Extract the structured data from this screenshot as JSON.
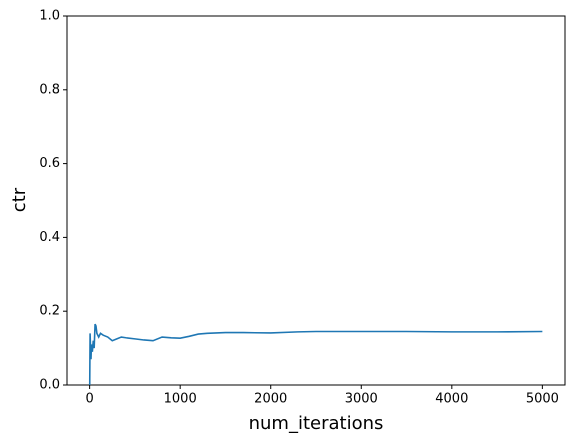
{
  "chart_data": {
    "type": "line",
    "xlabel": "num_iterations",
    "ylabel": "ctr",
    "x": [
      1,
      5,
      10,
      15,
      20,
      30,
      40,
      50,
      60,
      70,
      80,
      100,
      120,
      150,
      200,
      250,
      300,
      350,
      400,
      500,
      600,
      700,
      800,
      900,
      1000,
      1100,
      1200,
      1300,
      1500,
      1700,
      2000,
      2300,
      2500,
      3000,
      3500,
      4000,
      4500,
      5000
    ],
    "series": [
      {
        "color": "#1f77b4",
        "values": [
          0,
          0.14,
          0.1,
          0.07,
          0.11,
          0.09,
          0.12,
          0.1,
          0.165,
          0.16,
          0.14,
          0.13,
          0.14,
          0.135,
          0.13,
          0.12,
          0.125,
          0.13,
          0.128,
          0.125,
          0.122,
          0.12,
          0.13,
          0.128,
          0.127,
          0.132,
          0.138,
          0.14,
          0.142,
          0.142,
          0.141,
          0.144,
          0.145,
          0.145,
          0.145,
          0.144,
          0.144,
          0.145
        ]
      }
    ],
    "xlim": [
      -250,
      5250
    ],
    "xticks": [
      0,
      1000,
      2000,
      3000,
      4000,
      5000
    ],
    "ylim": [
      0,
      1
    ],
    "yticks": [
      {
        "value": 0,
        "label": "0.0"
      },
      0.2,
      0.4,
      0.6,
      0.8,
      {
        "value": 1,
        "label": "1.0"
      }
    ],
    "grid": false
  }
}
